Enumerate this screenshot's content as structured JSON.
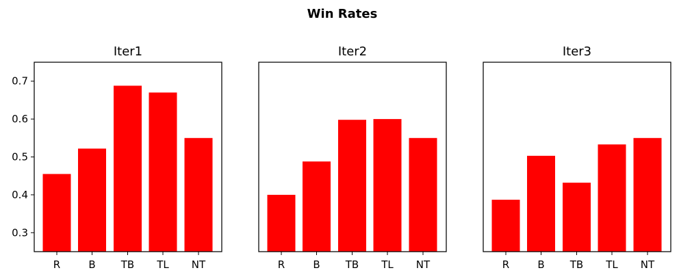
{
  "figure": {
    "title": "Win Rates"
  },
  "chart_data": [
    {
      "type": "bar",
      "title": "Iter1",
      "categories": [
        "R",
        "B",
        "TB",
        "TL",
        "NT"
      ],
      "values": [
        0.455,
        0.522,
        0.688,
        0.67,
        0.55
      ],
      "color": "#ff0000",
      "xlabel": "",
      "ylabel": "",
      "ylim": [
        0.25,
        0.75
      ],
      "yticks": [
        "0.3",
        "0.4",
        "0.5",
        "0.6",
        "0.7"
      ],
      "show_yticks": true,
      "grid": false
    },
    {
      "type": "bar",
      "title": "Iter2",
      "categories": [
        "R",
        "B",
        "TB",
        "TL",
        "NT"
      ],
      "values": [
        0.4,
        0.488,
        0.598,
        0.6,
        0.55
      ],
      "color": "#ff0000",
      "xlabel": "",
      "ylabel": "",
      "ylim": [
        0.25,
        0.75
      ],
      "yticks": [],
      "show_yticks": false,
      "grid": false
    },
    {
      "type": "bar",
      "title": "Iter3",
      "categories": [
        "R",
        "B",
        "TB",
        "TL",
        "NT"
      ],
      "values": [
        0.387,
        0.503,
        0.432,
        0.533,
        0.55
      ],
      "color": "#ff0000",
      "xlabel": "",
      "ylabel": "",
      "ylim": [
        0.25,
        0.75
      ],
      "yticks": [],
      "show_yticks": false,
      "grid": false
    }
  ]
}
